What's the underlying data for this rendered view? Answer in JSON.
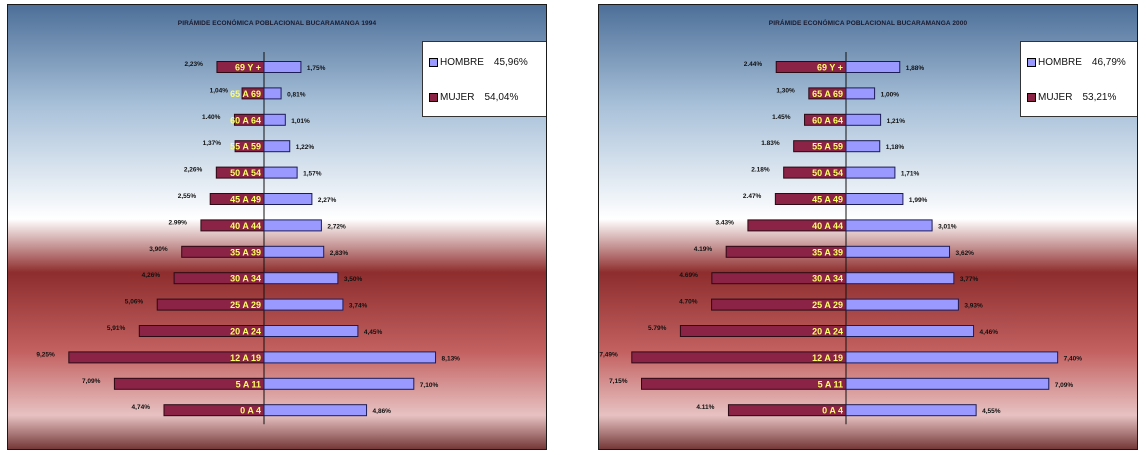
{
  "chart_data": [
    {
      "type": "bar",
      "title": "PIRÁMIDE ECONÓMICA POBLACIONAL BUCARAMANGA 1994",
      "categories": [
        "69 Y +",
        "65 A 69",
        "60 A 64",
        "55 A 59",
        "50 A 54",
        "45 A 49",
        "40 A 44",
        "35 A 39",
        "30 A 34",
        "25 A 29",
        "20 A 24",
        "12 A 19",
        "5 A 11",
        "0 A 4"
      ],
      "series": [
        {
          "name": "MUJER",
          "values": [
            2.23,
            1.04,
            1.4,
            1.37,
            2.26,
            2.55,
            2.99,
            3.9,
            4.26,
            5.06,
            5.91,
            9.25,
            7.09,
            4.74
          ],
          "labels": [
            "2,23%",
            "1,04%",
            "1.40%",
            "1,37%",
            "2,26%",
            "2,55%",
            "2.99%",
            "3,90%",
            "4,26%",
            "5,06%",
            "5,91%",
            "9,25%",
            "7,09%",
            "4,74%"
          ]
        },
        {
          "name": "HOMBRE",
          "values": [
            1.75,
            0.81,
            1.01,
            1.22,
            1.57,
            2.27,
            2.72,
            2.83,
            3.5,
            3.74,
            4.45,
            8.13,
            7.1,
            4.86
          ],
          "labels": [
            "1,75%",
            "0,81%",
            "1,01%",
            "1,22%",
            "1,57%",
            "2,27%",
            "2,72%",
            "2,83%",
            "3,50%",
            "3,74%",
            "4,45%",
            "8,13%",
            "7,10%",
            "4,86%"
          ]
        }
      ],
      "legend": [
        {
          "name": "HOMBRE",
          "value": "45,96%",
          "color": "#9999ff"
        },
        {
          "name": "MUJER",
          "value": "54,04%",
          "color": "#8b2346"
        }
      ],
      "legend_position": "top-right",
      "xlim": [
        -9.5,
        9.5
      ]
    },
    {
      "type": "bar",
      "title": "PIRÁMIDE ECONÓMICA POBLACIONAL BUCARAMANGA 2000",
      "categories": [
        "69 Y +",
        "65 A 69",
        "60 A 64",
        "55 A 59",
        "50 A 54",
        "45 A 49",
        "40 A 44",
        "35 A 39",
        "30 A 34",
        "25 A 29",
        "20 A 24",
        "12 A 19",
        "5 A 11",
        "0 A 4"
      ],
      "series": [
        {
          "name": "MUJER",
          "values": [
            2.44,
            1.3,
            1.45,
            1.83,
            2.18,
            2.47,
            3.43,
            4.19,
            4.69,
            4.7,
            5.79,
            7.49,
            7.15,
            4.11
          ],
          "labels": [
            "2.44%",
            "1,30%",
            "1.45%",
            "1.83%",
            "2.18%",
            "2.47%",
            "3.43%",
            "4.19%",
            "4.69%",
            "4.70%",
            "5.79%",
            "7,49%",
            "7,15%",
            "4.11%"
          ]
        },
        {
          "name": "HOMBRE",
          "values": [
            1.88,
            1.0,
            1.21,
            1.18,
            1.71,
            1.99,
            3.01,
            3.62,
            3.77,
            3.93,
            4.46,
            7.4,
            7.09,
            4.55
          ],
          "labels": [
            "1,88%",
            "1,00%",
            "1,21%",
            "1,18%",
            "1,71%",
            "1,99%",
            "3,01%",
            "3,62%",
            "3,77%",
            "3,93%",
            "4,46%",
            "7,40%",
            "7,09%",
            "4,55%"
          ]
        }
      ],
      "legend": [
        {
          "name": "HOMBRE",
          "value": "46,79%",
          "color": "#9999ff"
        },
        {
          "name": "MUJER",
          "value": "53,21%",
          "color": "#8b2346"
        }
      ],
      "legend_position": "top-right",
      "xlim": [
        -8.0,
        8.0
      ]
    }
  ]
}
